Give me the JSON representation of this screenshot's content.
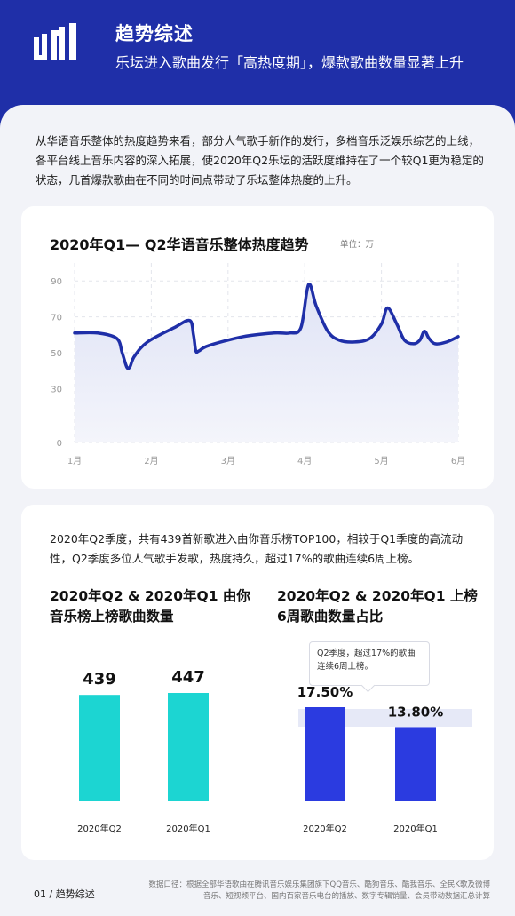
{
  "header": {
    "title": "趋势综述",
    "subtitle": "乐坛进入歌曲发行「高热度期」，爆款歌曲数量显著上升"
  },
  "intro": "从华语音乐整体的热度趋势来看，部分人气歌手新作的发行，多档音乐泛娱乐综艺的上线，各平台线上音乐内容的深入拓展，使2020年Q2乐坛的活跃度维持在了一个较Q1更为稳定的状态，几首爆款歌曲在不同的时间点带动了乐坛整体热度的上升。",
  "trend_card": {
    "title": "2020年Q1— Q2华语音乐整体热度趋势",
    "unit": "单位：万"
  },
  "songs_card": {
    "text": "2020年Q2季度，共有439首新歌进入由你音乐榜TOP100，相较于Q1季度的高流动性，Q2季度多位人气歌手发歌，热度持久，超过17%的歌曲连续6周上榜。",
    "left_title": "2020年Q2 & 2020年Q1 由你音乐榜上榜歌曲数量",
    "right_title": "2020年Q2 & 2020年Q1 上榜6周歌曲数量占比",
    "tooltip": "Q2季度，超过17%的歌曲连续6周上榜。"
  },
  "chart_data": [
    {
      "type": "line",
      "title": "2020年Q1— Q2华语音乐整体热度趋势",
      "ylabel": "单位：万",
      "ylim": [
        0,
        100
      ],
      "yticks": [
        "0",
        "30",
        "50",
        "70",
        "90"
      ],
      "xticks": [
        "1月",
        "2月",
        "3月",
        "4月",
        "5月",
        "6月"
      ],
      "x": [
        1.0,
        1.3,
        1.55,
        1.62,
        1.68,
        1.72,
        1.78,
        1.95,
        2.3,
        2.5,
        2.55,
        2.58,
        2.62,
        2.75,
        3.2,
        3.6,
        3.8,
        3.95,
        4.05,
        4.15,
        4.3,
        4.45,
        4.65,
        4.85,
        5.0,
        5.08,
        5.2,
        5.3,
        5.42,
        5.5,
        5.56,
        5.62,
        5.7,
        5.85,
        6.0
      ],
      "y": [
        61,
        61,
        58,
        50,
        42,
        42,
        48,
        56,
        64,
        68,
        60,
        51,
        51,
        54,
        59,
        61,
        61,
        64,
        88,
        76,
        62,
        57,
        56,
        58,
        66,
        75,
        66,
        57,
        55,
        57,
        62,
        58,
        55,
        56,
        59
      ],
      "grid": true,
      "color": "#1f2fa8"
    },
    {
      "type": "bar",
      "title": "2020年Q2 & 2020年Q1 由你音乐榜上榜歌曲数量",
      "categories": [
        "2020年Q2",
        "2020年Q1"
      ],
      "values": [
        439,
        447
      ],
      "value_labels": [
        "439",
        "447"
      ],
      "color": "#1cd5d2"
    },
    {
      "type": "bar",
      "title": "2020年Q2 & 2020年Q1 上榜6周歌曲数量占比",
      "categories": [
        "2020年Q2",
        "2020年Q1"
      ],
      "values": [
        17.5,
        13.8
      ],
      "value_labels": [
        "17.50%",
        "13.80%"
      ],
      "color": "#2b3be0"
    }
  ],
  "footer": {
    "page": "01 / 趋势综述",
    "note": "数据口径：根据全部华语歌曲在腾讯音乐娱乐集团旗下QQ音乐、酷狗音乐、酷我音乐、全民K歌及微博音乐、短视频平台、国内百家音乐电台的播放、数字专辑销量、会员带动数据汇总计算"
  },
  "colors": {
    "brand": "#1f2fa8",
    "teal": "#1cd5d2",
    "blue": "#2b3be0",
    "background": "#f2f3f8"
  }
}
